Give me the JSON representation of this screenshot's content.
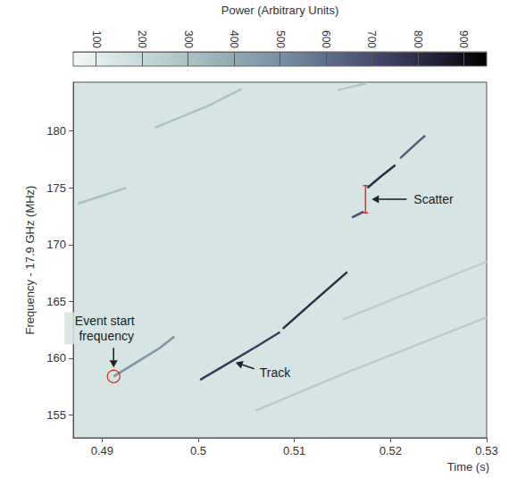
{
  "chart_data": {
    "type": "spectrogram",
    "colorbar_label": "Power (Arbitrary Units)",
    "x_label": "Time (s)",
    "y_label": "Frequency - 17.9 GHz (MHz)",
    "xlim": [
      0.487,
      0.53
    ],
    "xticks": [
      0.49,
      0.5,
      0.51,
      0.52,
      0.53
    ],
    "ylim": [
      153,
      184.3
    ],
    "yticks": [
      155,
      160,
      165,
      170,
      175,
      180
    ],
    "grid": false,
    "colorbar_range": [
      50,
      950
    ],
    "colorbar_ticks": [
      100,
      200,
      300,
      400,
      500,
      600,
      700,
      800,
      900
    ],
    "background_power": 150,
    "tracks": [
      {
        "power": 480,
        "points": [
          [
            0.4912,
            158.4
          ],
          [
            0.4935,
            159.6
          ],
          [
            0.496,
            160.9
          ],
          [
            0.4975,
            161.9
          ]
        ]
      },
      {
        "power": 750,
        "points": [
          [
            0.5002,
            158.1
          ],
          [
            0.503,
            159.5
          ],
          [
            0.506,
            161.0
          ],
          [
            0.5085,
            162.3
          ]
        ]
      },
      {
        "power": 800,
        "points": [
          [
            0.5088,
            162.6
          ],
          [
            0.512,
            165.0
          ],
          [
            0.5155,
            167.6
          ]
        ]
      },
      {
        "power": 700,
        "points": [
          [
            0.516,
            172.4
          ],
          [
            0.5172,
            172.9
          ]
        ]
      },
      {
        "power": 800,
        "points": [
          [
            0.5176,
            175.0
          ],
          [
            0.519,
            176.0
          ],
          [
            0.5205,
            177.0
          ]
        ]
      },
      {
        "power": 650,
        "points": [
          [
            0.521,
            177.6
          ],
          [
            0.5228,
            179.0
          ],
          [
            0.5236,
            179.6
          ]
        ]
      },
      {
        "power": 300,
        "points": [
          [
            0.4875,
            173.6
          ],
          [
            0.4925,
            175.0
          ]
        ]
      },
      {
        "power": 300,
        "points": [
          [
            0.4955,
            180.3
          ],
          [
            0.501,
            182.2
          ],
          [
            0.5045,
            183.7
          ]
        ]
      },
      {
        "power": 280,
        "points": [
          [
            0.5145,
            183.6
          ],
          [
            0.5175,
            184.2
          ]
        ]
      },
      {
        "power": 260,
        "points": [
          [
            0.506,
            155.4
          ],
          [
            0.515,
            158.6
          ],
          [
            0.53,
            163.6
          ]
        ]
      },
      {
        "power": 250,
        "points": [
          [
            0.515,
            163.4
          ],
          [
            0.53,
            168.5
          ]
        ]
      }
    ],
    "annotations": [
      {
        "text": "Event start frequency",
        "marker": "circle",
        "x": 0.4912,
        "y": 158.4
      },
      {
        "text": "Track",
        "x": 0.5036,
        "y": 159.7
      },
      {
        "text": "Scatter",
        "marker": "bracket",
        "x": 0.5174,
        "y_range": [
          172.8,
          175.2
        ]
      }
    ]
  }
}
